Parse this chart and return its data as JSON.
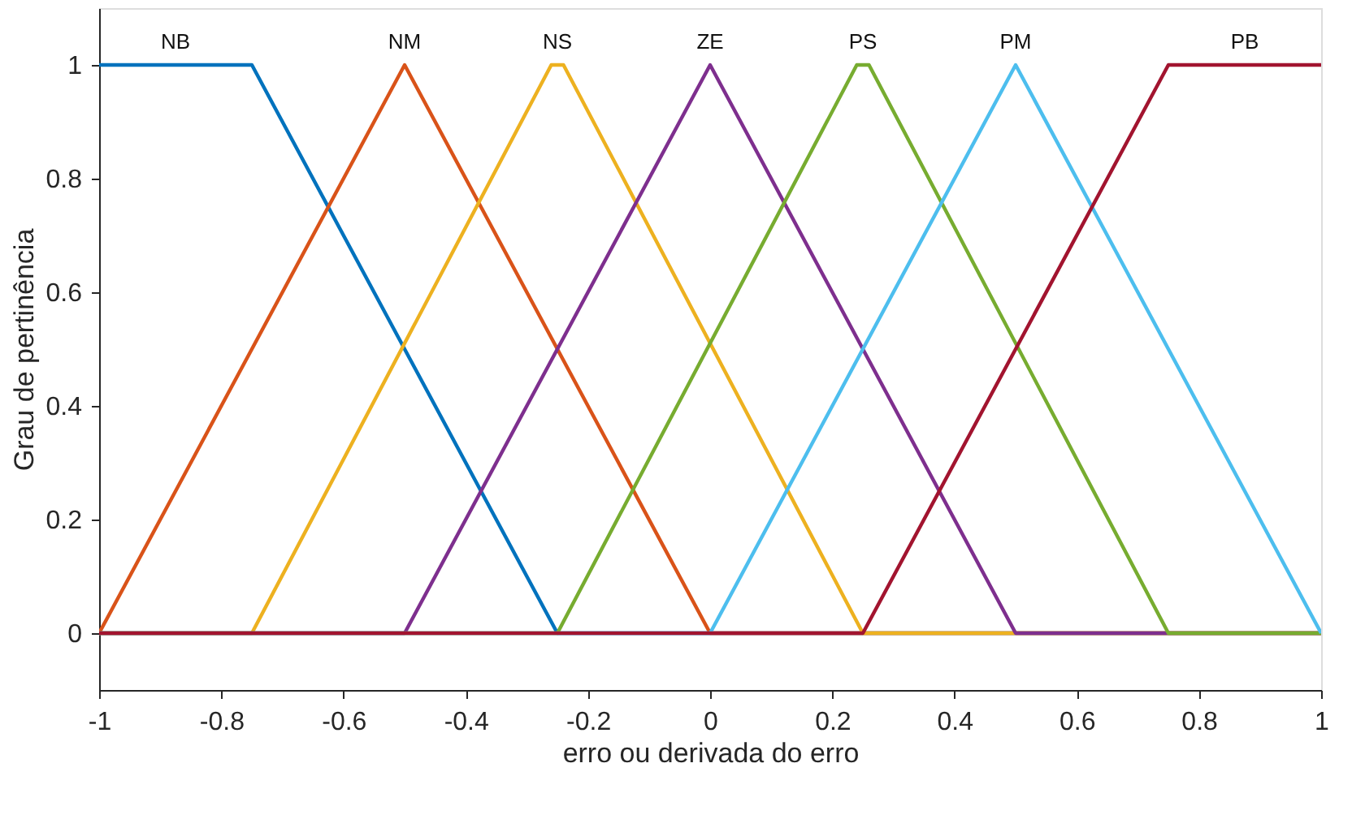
{
  "chart_data": {
    "type": "line",
    "xlabel": "erro ou derivada do erro",
    "ylabel": "Grau de pertinência",
    "xlim": [
      -1,
      1
    ],
    "ylim": [
      -0.1,
      1.1
    ],
    "xticks": [
      -1,
      -0.8,
      -0.6,
      -0.4,
      -0.2,
      0,
      0.2,
      0.4,
      0.6,
      0.8,
      1
    ],
    "yticks": [
      0,
      0.2,
      0.4,
      0.6,
      0.8,
      1
    ],
    "grid": false,
    "legend": false,
    "marker": "none",
    "line_style": "solid",
    "series": [
      {
        "name": "NB",
        "color": "#0072bd",
        "x": [
          -1,
          -0.75,
          -0.25,
          1
        ],
        "values": [
          1,
          1,
          0,
          0
        ]
      },
      {
        "name": "NM",
        "color": "#d95319",
        "x": [
          -1,
          -0.5,
          0,
          1
        ],
        "values": [
          0,
          1,
          0,
          0
        ]
      },
      {
        "name": "NS",
        "color": "#edb120",
        "x": [
          -1,
          -0.75,
          -0.26,
          -0.24,
          0.25,
          1
        ],
        "values": [
          0,
          0,
          1,
          1,
          0,
          0
        ]
      },
      {
        "name": "ZE",
        "color": "#7e2f8e",
        "x": [
          -1,
          -0.5,
          0,
          0.5,
          1
        ],
        "values": [
          0,
          0,
          1,
          0,
          0
        ]
      },
      {
        "name": "PS",
        "color": "#77ac30",
        "x": [
          -1,
          -0.25,
          0.24,
          0.26,
          0.75,
          1
        ],
        "values": [
          0,
          0,
          1,
          1,
          0,
          0
        ]
      },
      {
        "name": "PM",
        "color": "#4dbeee",
        "x": [
          -1,
          0,
          0.5,
          1
        ],
        "values": [
          0,
          0,
          1,
          0
        ]
      },
      {
        "name": "PB",
        "color": "#a2142f",
        "x": [
          -1,
          0.25,
          0.75,
          1
        ],
        "values": [
          0,
          0,
          1,
          1
        ]
      }
    ]
  }
}
